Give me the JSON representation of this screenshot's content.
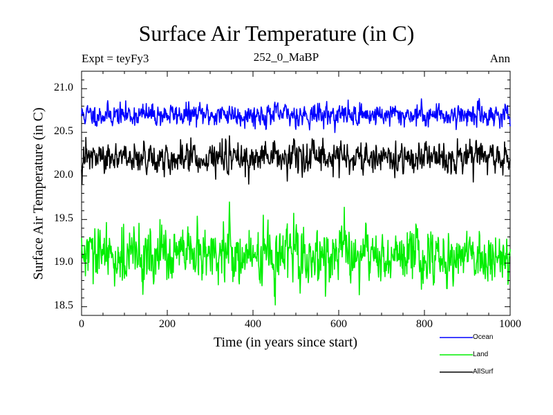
{
  "chart_data": {
    "type": "line",
    "title": "Surface Air Temperature (in C)",
    "expt_label": "Expt = teyFy3",
    "subtitle": "252_0_MaBP",
    "season": "Ann",
    "xlabel": "Time (in years since start)",
    "ylabel": "Surface Air Temperature (in C)",
    "xlim": [
      0,
      1000
    ],
    "ylim": [
      18.4,
      21.2
    ],
    "xticks": [
      0,
      200,
      400,
      600,
      800,
      1000
    ],
    "yticks": [
      "18.5",
      "19.0",
      "19.5",
      "20.0",
      "20.5",
      "21.0"
    ],
    "series": [
      {
        "name": "Ocean",
        "color": "#0000ff",
        "mean": 20.7,
        "noise": 0.06,
        "spike": {
          "x": 345,
          "value": 20.8
        }
      },
      {
        "name": "Land",
        "color": "#00ee00",
        "mean": 19.08,
        "noise": 0.15,
        "spike": {
          "x": 345,
          "value": 19.7
        },
        "dip": {
          "x": 452,
          "value": 18.52
        }
      },
      {
        "name": "AllSurf",
        "color": "#000000",
        "mean": 20.2,
        "noise": 0.08,
        "spike": {
          "x": 345,
          "value": 20.46
        }
      }
    ]
  }
}
